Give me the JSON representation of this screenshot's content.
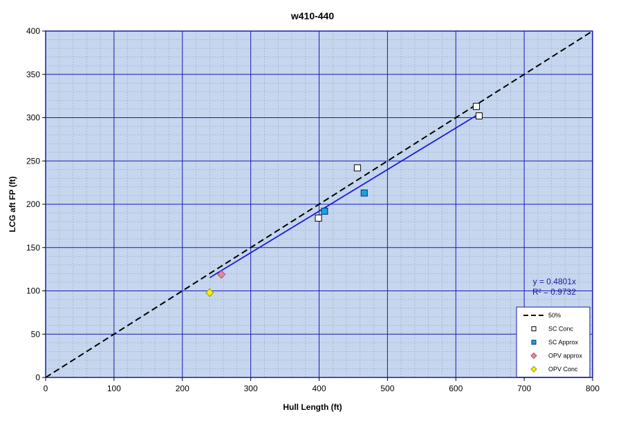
{
  "chart_data": {
    "type": "scatter",
    "title": "w410-440",
    "xlabel": "Hull Length (ft)",
    "ylabel": "LCG aft FP (ft)",
    "xlim": [
      0,
      800
    ],
    "ylim": [
      0,
      400
    ],
    "x_ticks": [
      0,
      100,
      200,
      300,
      400,
      500,
      600,
      700,
      800
    ],
    "y_ticks": [
      0,
      50,
      100,
      150,
      200,
      250,
      300,
      350,
      400
    ],
    "x_tick_labels": [
      "0",
      "100",
      "200",
      "300",
      "400",
      "500",
      "600",
      "700",
      "800"
    ],
    "y_tick_labels": [
      "0",
      "50",
      "100",
      "150",
      "200",
      "250",
      "300",
      "350",
      "400"
    ],
    "grid": true,
    "minor_grid": true,
    "background_color": "#c5d6ee",
    "legend_position": "bottom-right",
    "series": [
      {
        "name": "50%",
        "kind": "line",
        "style": "dashed",
        "color": "#000000",
        "points": [
          [
            0,
            0
          ],
          [
            800,
            400
          ]
        ]
      },
      {
        "name": "SC Conc",
        "kind": "marker",
        "marker": "square",
        "color": "#ffffff",
        "edge": "#000000",
        "points": [
          [
            399,
            184
          ],
          [
            456,
            242
          ],
          [
            630,
            313
          ],
          [
            634,
            302
          ]
        ]
      },
      {
        "name": "SC Approx",
        "kind": "marker",
        "marker": "square",
        "color": "#1aa3e0",
        "edge": "#003366",
        "points": [
          [
            408,
            192
          ],
          [
            466,
            213
          ]
        ]
      },
      {
        "name": "OPV approx",
        "kind": "marker",
        "marker": "diamond",
        "color": "#e68a99",
        "edge": "#aa5566",
        "points": [
          [
            257,
            119
          ]
        ]
      },
      {
        "name": "OPV Conc",
        "kind": "marker",
        "marker": "diamond",
        "color": "#ffee00",
        "edge": "#999900",
        "points": [
          [
            240,
            98
          ]
        ]
      }
    ],
    "trendline": {
      "color": "#1a1ae0",
      "slope": 0.4801,
      "x_range": [
        240,
        634
      ],
      "equation": "y = 0.4801x",
      "r2": "R² = 0.9732"
    }
  }
}
